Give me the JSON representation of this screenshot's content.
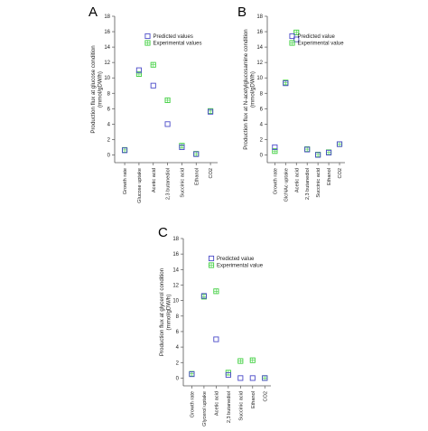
{
  "colors": {
    "predicted": "#4a4ac8",
    "experimental": "#3fcf3f"
  },
  "chart_data": [
    {
      "type": "scatter",
      "panel": "A",
      "ylabel": [
        "Production flux at glucose condition",
        "(mmol/gDW/h)"
      ],
      "ylim": [
        -1,
        18
      ],
      "yticks": [
        0,
        2,
        4,
        6,
        8,
        10,
        12,
        14,
        16,
        18
      ],
      "categories": [
        "Growth rate",
        "Glucose uptake",
        "Acetic acid",
        "2,3 butanediol",
        "Succinic acid",
        "Ethanol",
        "CO2"
      ],
      "legend": {
        "position": "top-right"
      },
      "series": [
        {
          "name": "Predicted values",
          "marker": "square",
          "values": [
            0.6,
            11.0,
            9.0,
            4.0,
            1.0,
            0.1,
            5.6
          ]
        },
        {
          "name": "Experimental values",
          "marker": "square-plus",
          "values": [
            0.65,
            10.5,
            11.7,
            7.1,
            1.2,
            0.15,
            5.7
          ]
        }
      ]
    },
    {
      "type": "scatter",
      "panel": "B",
      "ylabel": [
        "Production flux at N-acetylglucosamine condition",
        "(mmol/gDW/h)"
      ],
      "ylim": [
        -1,
        18
      ],
      "yticks": [
        0,
        2,
        4,
        6,
        8,
        10,
        12,
        14,
        16,
        18
      ],
      "categories": [
        "Growth rate",
        "GlcNAc uptake",
        "Acetic acid",
        "2,3 butanediol",
        "Succinic acid",
        "Ethanol",
        "CO2"
      ],
      "legend": {
        "position": "top-right"
      },
      "series": [
        {
          "name": "Predicted value",
          "marker": "square",
          "values": [
            1.0,
            9.3,
            15.0,
            0.7,
            0.0,
            0.3,
            1.4
          ]
        },
        {
          "name": "Experimental value",
          "marker": "square-plus",
          "values": [
            0.5,
            9.4,
            15.9,
            0.75,
            0.05,
            0.35,
            1.4
          ]
        }
      ]
    },
    {
      "type": "scatter",
      "panel": "C",
      "ylabel": [
        "Production flux at glycerol condition",
        "(mmol/gDW/h)"
      ],
      "ylim": [
        -1,
        18
      ],
      "yticks": [
        0,
        2,
        4,
        6,
        8,
        10,
        12,
        14,
        16,
        18
      ],
      "categories": [
        "Growth rate",
        "Glycerol uptake",
        "Acetic acid",
        "2,3 butanediol",
        "Succinic acid",
        "Ethanol",
        "CO2"
      ],
      "legend": {
        "position": "top-right"
      },
      "series": [
        {
          "name": "Predicted value",
          "marker": "square",
          "values": [
            0.5,
            10.6,
            5.0,
            0.4,
            0.0,
            0.0,
            0.0
          ]
        },
        {
          "name": "Experimental value",
          "marker": "square-plus",
          "values": [
            0.55,
            10.5,
            11.2,
            0.7,
            2.2,
            2.3,
            0.0
          ]
        }
      ]
    }
  ]
}
